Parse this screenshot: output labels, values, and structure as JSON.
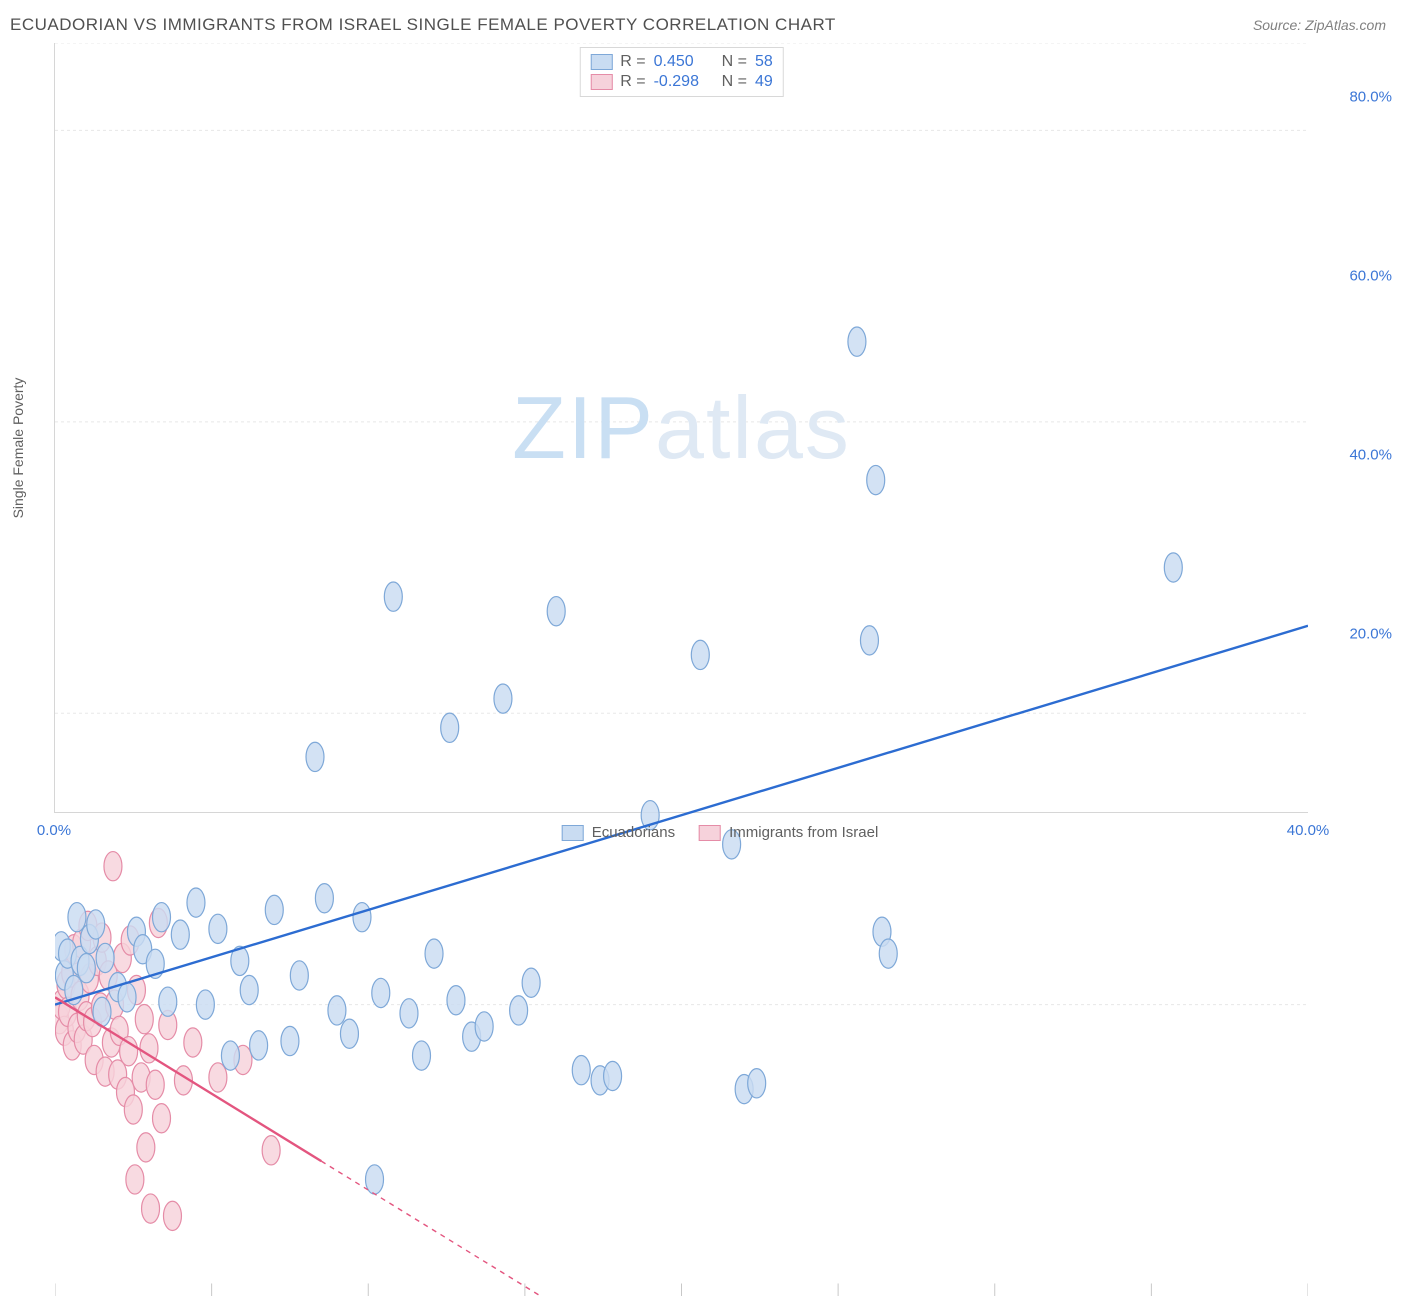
{
  "title": "ECUADORIAN VS IMMIGRANTS FROM ISRAEL SINGLE FEMALE POVERTY CORRELATION CHART",
  "source": "Source: ZipAtlas.com",
  "ylabel": "Single Female Poverty",
  "watermark": "ZIPatlas",
  "chart": {
    "type": "scatter",
    "background_color": "#ffffff",
    "grid_color": "#e8e8e8",
    "axis_color": "#d6d6d6",
    "tick_color": "#c8c8c8",
    "xlim": [
      0,
      40
    ],
    "ylim": [
      0,
      86
    ],
    "xticks": [
      0,
      5,
      10,
      15,
      20,
      25,
      30,
      35,
      40
    ],
    "xtick_labels": {
      "0": "0.0%",
      "40": "40.0%"
    },
    "yticks": [
      20,
      40,
      60,
      80
    ],
    "ytick_labels": {
      "20": "20.0%",
      "40": "40.0%",
      "60": "60.0%",
      "80": "80.0%"
    },
    "tick_label_color": "#3b76d6",
    "marker_radius": 9,
    "marker_stroke_width": 1.2,
    "trend_line_width": 2.4,
    "trend_dash": "5 5",
    "title_fontsize": 17,
    "source_fontsize": 14,
    "watermark_color": "#dfe9f4",
    "watermark_accent": "#c9dff3"
  },
  "series": [
    {
      "key": "ecuadorians",
      "label": "Ecuadorians",
      "fill": "#c9dcf2",
      "stroke": "#7ea8d8",
      "line_color": "#2c6cd1",
      "R": "0.450",
      "N": "58",
      "trend": {
        "x1": 0,
        "y1": 20,
        "x2": 40,
        "y2": 46
      },
      "points": [
        [
          0.2,
          24
        ],
        [
          0.3,
          22
        ],
        [
          0.4,
          23.5
        ],
        [
          0.6,
          21
        ],
        [
          0.7,
          26
        ],
        [
          0.8,
          23
        ],
        [
          1.0,
          22.5
        ],
        [
          1.1,
          24.5
        ],
        [
          1.3,
          25.5
        ],
        [
          1.5,
          19.5
        ],
        [
          1.6,
          23.2
        ],
        [
          2.0,
          21.2
        ],
        [
          2.3,
          20.5
        ],
        [
          2.6,
          25
        ],
        [
          2.8,
          23.8
        ],
        [
          3.2,
          22.8
        ],
        [
          3.4,
          26
        ],
        [
          3.6,
          20.2
        ],
        [
          4.0,
          24.8
        ],
        [
          4.5,
          27
        ],
        [
          4.8,
          20
        ],
        [
          5.2,
          25.2
        ],
        [
          5.6,
          16.5
        ],
        [
          5.9,
          23
        ],
        [
          6.2,
          21
        ],
        [
          6.5,
          17.2
        ],
        [
          7.0,
          26.5
        ],
        [
          7.5,
          17.5
        ],
        [
          7.8,
          22
        ],
        [
          8.3,
          37
        ],
        [
          8.6,
          27.3
        ],
        [
          9.0,
          19.6
        ],
        [
          9.4,
          18
        ],
        [
          9.8,
          26
        ],
        [
          10.2,
          8.0
        ],
        [
          10.4,
          20.8
        ],
        [
          10.8,
          48
        ],
        [
          11.3,
          19.4
        ],
        [
          11.7,
          16.5
        ],
        [
          12.1,
          23.5
        ],
        [
          12.6,
          39
        ],
        [
          12.8,
          20.3
        ],
        [
          13.3,
          17.8
        ],
        [
          13.7,
          18.5
        ],
        [
          14.3,
          41
        ],
        [
          14.8,
          19.6
        ],
        [
          15.2,
          21.5
        ],
        [
          16.0,
          47
        ],
        [
          16.8,
          15.5
        ],
        [
          17.4,
          14.8
        ],
        [
          17.8,
          15.1
        ],
        [
          19.0,
          33
        ],
        [
          20.6,
          44
        ],
        [
          21.6,
          31
        ],
        [
          22.0,
          14.2
        ],
        [
          22.4,
          14.6
        ],
        [
          25.6,
          65.5
        ],
        [
          26.0,
          45
        ],
        [
          26.2,
          56
        ],
        [
          26.4,
          25
        ],
        [
          26.6,
          23.5
        ],
        [
          35.7,
          50
        ]
      ]
    },
    {
      "key": "israel",
      "label": "Immigrants from Israel",
      "fill": "#f6d2db",
      "stroke": "#e58ca7",
      "line_color": "#e3557f",
      "R": "-0.298",
      "N": "49",
      "trend": {
        "x1": 0,
        "y1": 20.5,
        "x2": 15.5,
        "y2": 0
      },
      "trend_solid_until_x": 8.5,
      "points": [
        [
          0.15,
          19
        ],
        [
          0.2,
          20
        ],
        [
          0.3,
          18.2
        ],
        [
          0.35,
          21.4
        ],
        [
          0.4,
          19.5
        ],
        [
          0.5,
          22.2
        ],
        [
          0.55,
          17.2
        ],
        [
          0.6,
          23.8
        ],
        [
          0.7,
          18.4
        ],
        [
          0.8,
          20.6
        ],
        [
          0.85,
          24.2
        ],
        [
          0.9,
          17.6
        ],
        [
          1.0,
          19.2
        ],
        [
          1.05,
          25.4
        ],
        [
          1.1,
          21.8
        ],
        [
          1.2,
          18.8
        ],
        [
          1.25,
          16.2
        ],
        [
          1.35,
          23
        ],
        [
          1.45,
          19.8
        ],
        [
          1.5,
          24.6
        ],
        [
          1.6,
          15.4
        ],
        [
          1.7,
          22
        ],
        [
          1.8,
          17.4
        ],
        [
          1.85,
          29.5
        ],
        [
          1.9,
          20
        ],
        [
          2.0,
          15.2
        ],
        [
          2.05,
          18.2
        ],
        [
          2.15,
          23.2
        ],
        [
          2.25,
          14
        ],
        [
          2.35,
          16.8
        ],
        [
          2.4,
          24.4
        ],
        [
          2.5,
          12.8
        ],
        [
          2.55,
          8.0
        ],
        [
          2.6,
          21
        ],
        [
          2.75,
          15
        ],
        [
          2.85,
          19
        ],
        [
          2.9,
          10.2
        ],
        [
          3.0,
          17
        ],
        [
          3.05,
          6.0
        ],
        [
          3.2,
          14.5
        ],
        [
          3.3,
          25.6
        ],
        [
          3.4,
          12.2
        ],
        [
          3.6,
          18.6
        ],
        [
          3.75,
          5.5
        ],
        [
          4.1,
          14.8
        ],
        [
          4.4,
          17.4
        ],
        [
          5.2,
          15
        ],
        [
          6.0,
          16.2
        ],
        [
          6.9,
          10
        ]
      ]
    }
  ],
  "legend_top": {
    "r_label": "R =",
    "n_label": "N =",
    "value_color": "#3b76d6"
  },
  "legend_bottom_labels": [
    "Ecuadorians",
    "Immigrants from Israel"
  ]
}
